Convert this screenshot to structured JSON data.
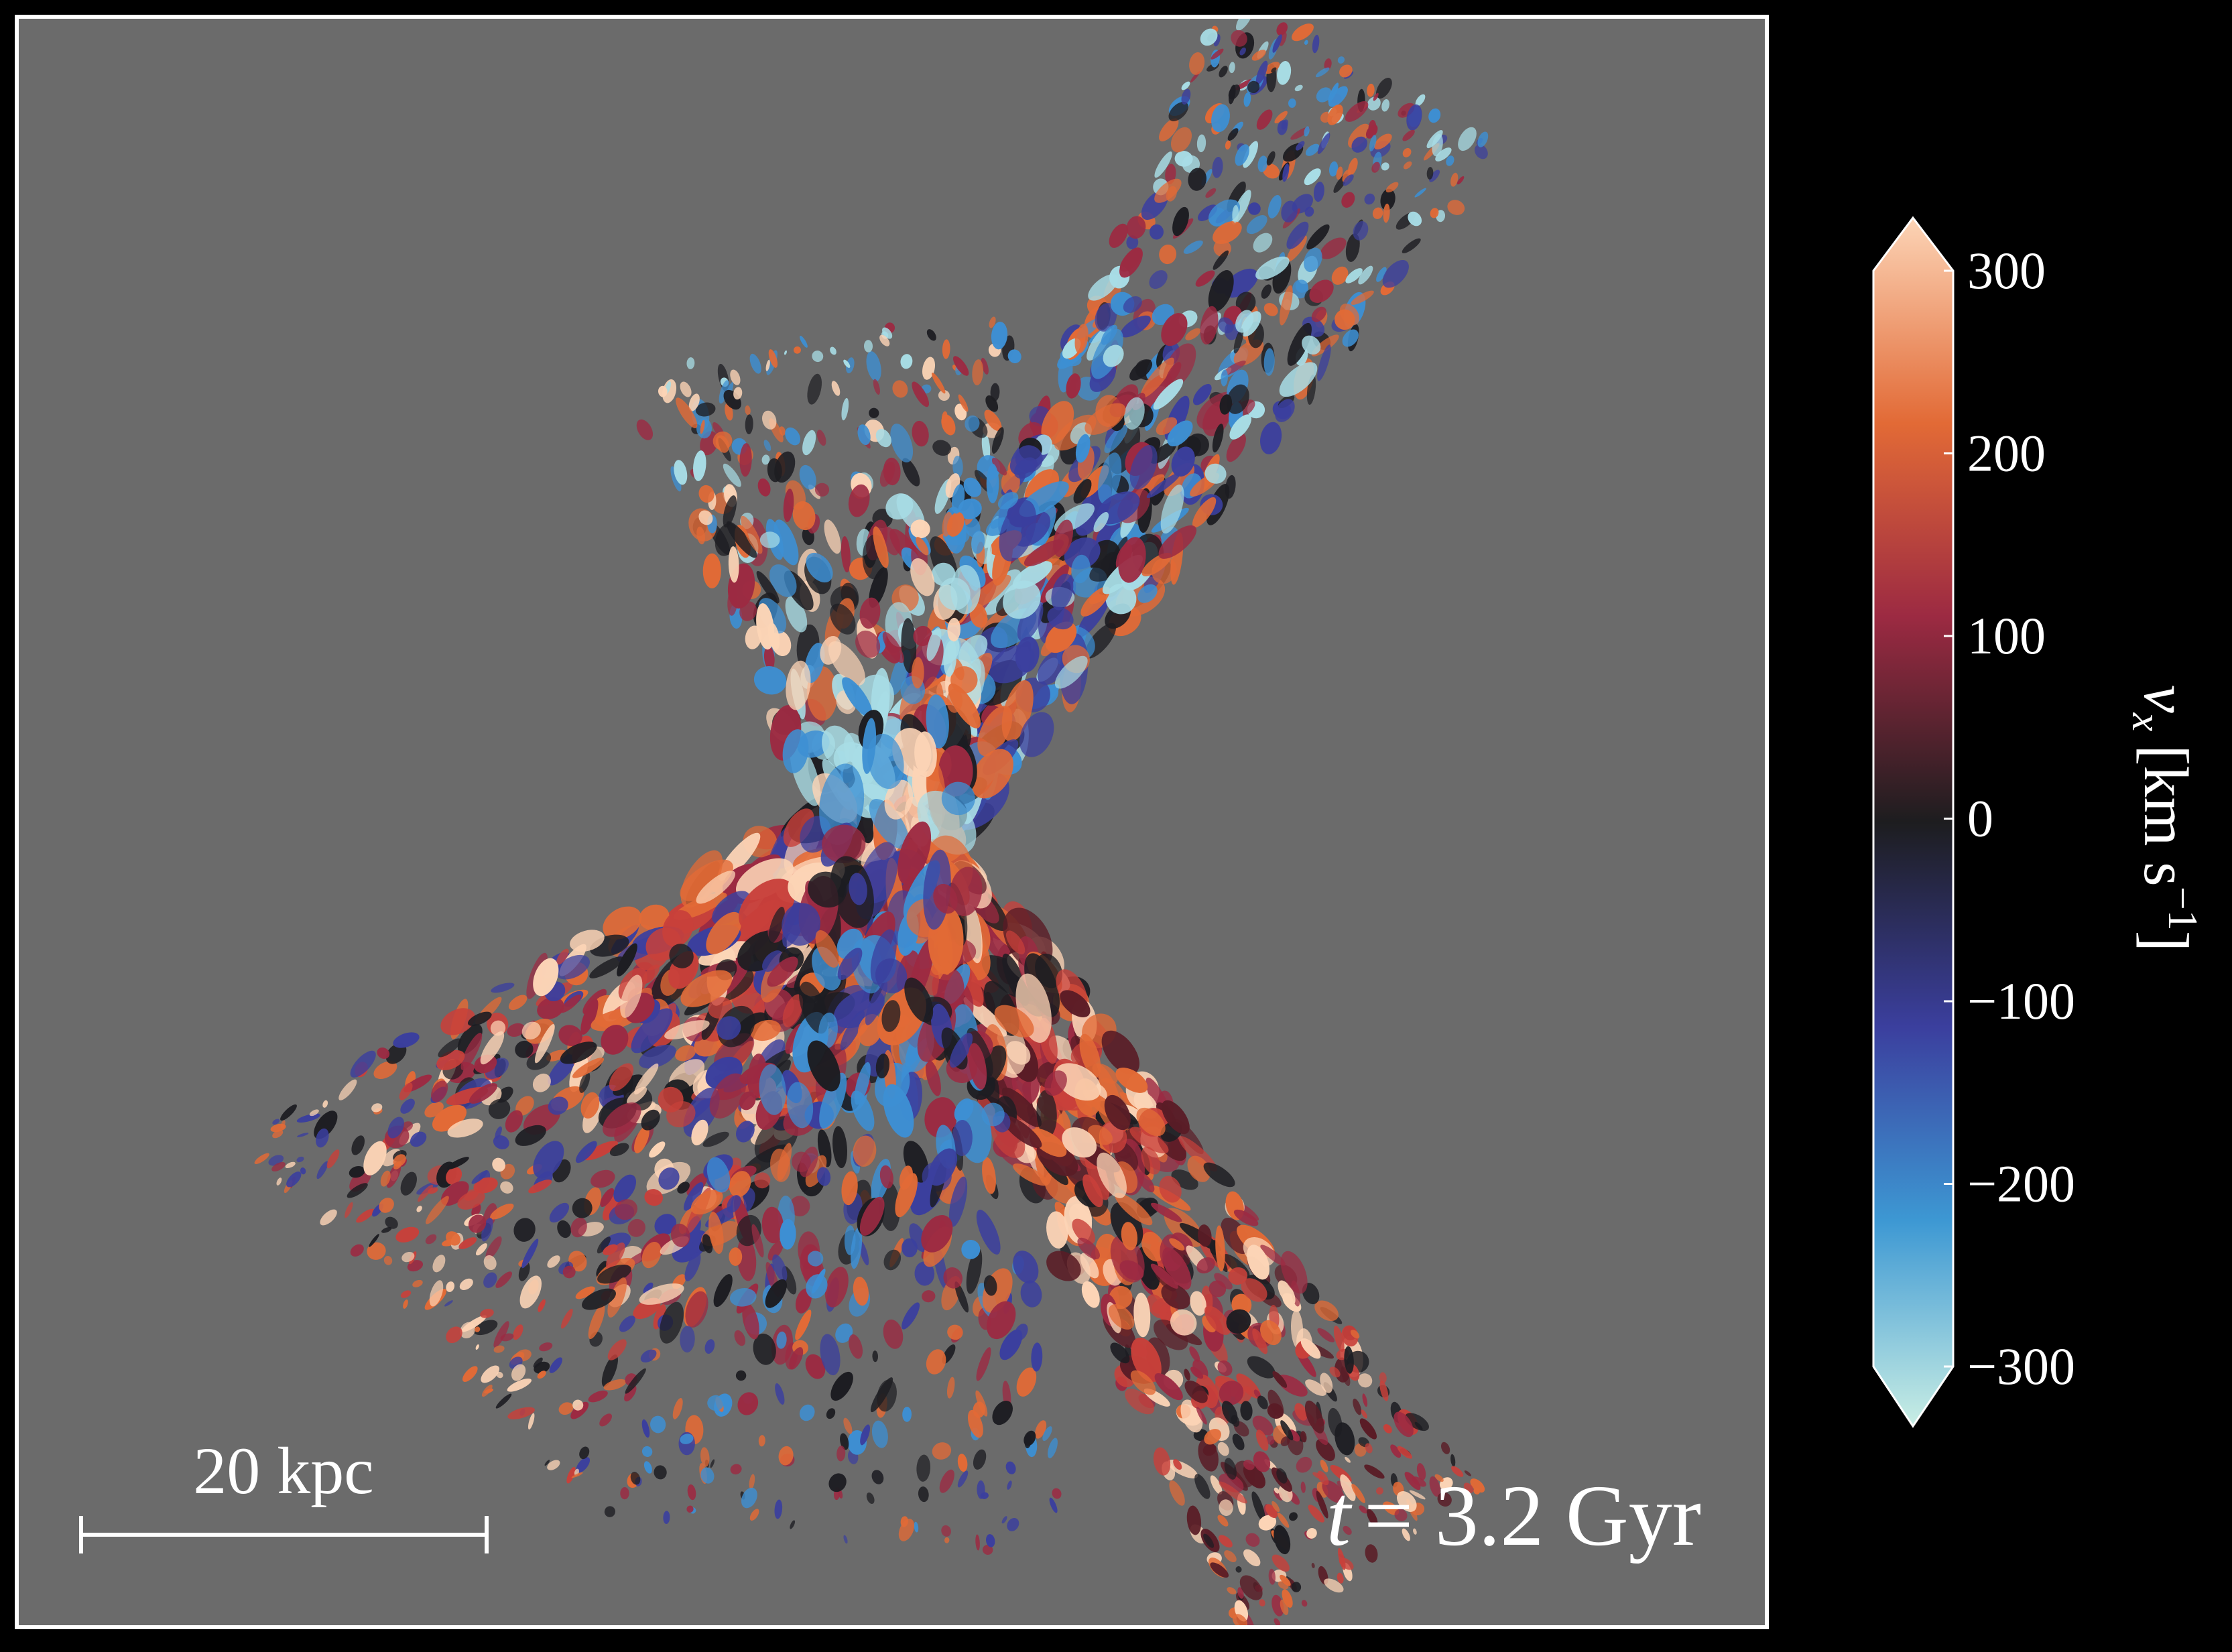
{
  "chart_data": {
    "type": "image",
    "colorbar": {
      "clim": [
        -300,
        300
      ],
      "ticks": [
        {
          "value": 300,
          "label": "300"
        },
        {
          "value": 200,
          "label": "200"
        },
        {
          "value": 100,
          "label": "100"
        },
        {
          "value": 0,
          "label": "0"
        },
        {
          "value": -100,
          "label": "−100"
        },
        {
          "value": -200,
          "label": "−200"
        },
        {
          "value": -300,
          "label": "−300"
        }
      ],
      "label": {
        "symbol": "v",
        "subscript": "x",
        "unit": "[km s",
        "exponent": "−1",
        "close": "]"
      }
    },
    "scale_bar": "20 kpc",
    "time": {
      "symbol": "t",
      "text": "= 3.2 Gyr"
    }
  }
}
